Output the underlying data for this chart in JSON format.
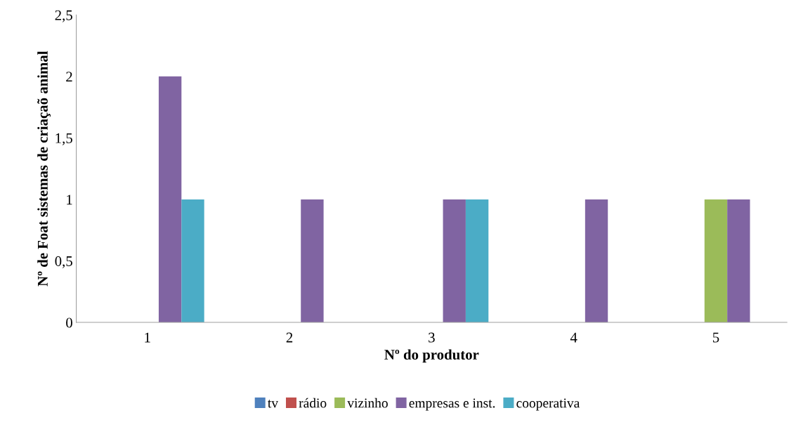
{
  "chart_data": {
    "type": "bar",
    "xlabel": "Nº do produtor",
    "ylabel": "Nº de Foat sistemas de criaçaõ animal",
    "categories": [
      "1",
      "2",
      "3",
      "4",
      "5"
    ],
    "series": [
      {
        "name": "tv",
        "color": "#4f81bd",
        "values": [
          0,
          0,
          0,
          0,
          0
        ]
      },
      {
        "name": "rádio",
        "color": "#c0504d",
        "values": [
          0,
          0,
          0,
          0,
          0
        ]
      },
      {
        "name": "vizinho",
        "color": "#9bbb59",
        "values": [
          0,
          0,
          0,
          0,
          1
        ]
      },
      {
        "name": "empresas e inst.",
        "color": "#8064a2",
        "values": [
          2,
          1,
          1,
          1,
          1
        ]
      },
      {
        "name": "cooperativa",
        "color": "#4bacc6",
        "values": [
          1,
          0,
          1,
          0,
          0
        ]
      }
    ],
    "ylim": [
      0,
      2.5
    ],
    "yticks": [
      0,
      {
        "value": 0.5,
        "label": "0,5"
      },
      1,
      {
        "value": 1.5,
        "label": "1,5"
      },
      2,
      {
        "value": 2.5,
        "label": "2,5"
      }
    ],
    "grid": false,
    "legend": "bottom"
  }
}
